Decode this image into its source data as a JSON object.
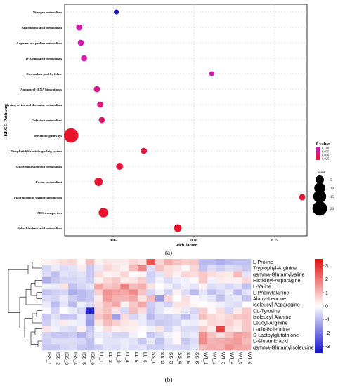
{
  "chart_data": [
    {
      "type": "scatter",
      "panel_label": "(a)",
      "ylabel": "KEGG Pathway",
      "xlabel": "Rich factor",
      "xlim": [
        0.02,
        0.17
      ],
      "xticks": [
        "0.05",
        "0.10",
        "0.15"
      ],
      "xtick_values": [
        0.05,
        0.1,
        0.15
      ],
      "grid": true,
      "legend_placement": "right",
      "color_legend": {
        "title": "P value",
        "ticks": [
          "0.100",
          "0.075",
          "0.050",
          "0.025"
        ],
        "tick_values": [
          0.1,
          0.075,
          0.05,
          0.025
        ],
        "low_color": "#e8142b",
        "high_color": "#c21fc8"
      },
      "size_legend": {
        "title": "Count",
        "ticks": [
          "5",
          "10",
          "15",
          "20"
        ],
        "tick_values": [
          5,
          10,
          15,
          20
        ]
      },
      "points": [
        {
          "pathway": "Nitrogen metabolism",
          "rich_factor": 0.052,
          "count": 1,
          "p_value": 0.12,
          "color": "#1a1aa8"
        },
        {
          "pathway": "Arachidonic acid metabolism",
          "rich_factor": 0.029,
          "count": 2,
          "p_value": 0.09,
          "color": "#d21cb0"
        },
        {
          "pathway": "Arginine and proline metabolism",
          "rich_factor": 0.03,
          "count": 2,
          "p_value": 0.09,
          "color": "#d21cb0"
        },
        {
          "pathway": "D-Amino acid metabolism",
          "rich_factor": 0.032,
          "count": 2,
          "p_value": 0.085,
          "color": "#d41ca4"
        },
        {
          "pathway": "One carbon pool by folate",
          "rich_factor": 0.111,
          "count": 1,
          "p_value": 0.09,
          "color": "#d21cb0"
        },
        {
          "pathway": "Aminoacyl-tRNA biosynthesis",
          "rich_factor": 0.04,
          "count": 2,
          "p_value": 0.07,
          "color": "#d61a8a"
        },
        {
          "pathway": "Glycine, serine and threonine metabolism",
          "rich_factor": 0.042,
          "count": 2,
          "p_value": 0.065,
          "color": "#d81a80"
        },
        {
          "pathway": "Galactose metabolism",
          "rich_factor": 0.043,
          "count": 2,
          "p_value": 0.06,
          "color": "#da1a6c"
        },
        {
          "pathway": "Metabolic pathways",
          "rich_factor": 0.024,
          "count": 20,
          "p_value": 0.02,
          "color": "#e8142b"
        },
        {
          "pathway": "Phosphatidylinositol signaling system",
          "rich_factor": 0.069,
          "count": 2,
          "p_value": 0.035,
          "color": "#e2163e"
        },
        {
          "pathway": "Glycerophospholipid metabolism",
          "rich_factor": 0.054,
          "count": 3,
          "p_value": 0.03,
          "color": "#e31538"
        },
        {
          "pathway": "Purine metabolism",
          "rich_factor": 0.041,
          "count": 5,
          "p_value": 0.025,
          "color": "#e61430"
        },
        {
          "pathway": "Plant hormone signal transduction",
          "rich_factor": 0.167,
          "count": 2,
          "p_value": 0.025,
          "color": "#e61430"
        },
        {
          "pathway": "ABC transporters",
          "rich_factor": 0.044,
          "count": 7,
          "p_value": 0.02,
          "color": "#e8142b"
        },
        {
          "pathway": "alpha-Linolenic acid metabolism",
          "rich_factor": 0.09,
          "count": 4,
          "p_value": 0.02,
          "color": "#e8142b"
        }
      ]
    },
    {
      "type": "heatmap",
      "panel_label": "(b)",
      "rows": [
        "L-Proline",
        "Tryptophyl-Arginine",
        "gamma-Glutamylvaline",
        "Histidinyl-Asparagine",
        "L-Valine",
        "L-Phenylalanine",
        "Alanyl-Leucine",
        "Isoleucyl-Asparagine",
        "DL-Tyrosine",
        "Isoleucyl-Alanine",
        "Leucyl-Arginine",
        "L-allo-isoleucine",
        "S-Lactoylglutathione",
        "L-Glutamic acid",
        "gamma-Glutamylisoleucine"
      ],
      "columns": [
        "ISS_1",
        "ISS_2",
        "ISS_3",
        "ISS_4",
        "ISS_5",
        "ISS_6",
        "LL_1",
        "LL_2",
        "LL_3",
        "LL_4",
        "LL_5",
        "LL_6",
        "SS_1",
        "SS_2",
        "SS_3",
        "SS_4",
        "SS_5",
        "SS_6",
        "WT_1",
        "WT_2",
        "WT_3",
        "WT_4",
        "WT_5",
        "WT_6"
      ],
      "colorbar": {
        "ticks": [
          "3",
          "2",
          "1",
          "0",
          "-1",
          "-2",
          "-3"
        ],
        "tick_values": [
          3,
          2,
          1,
          0,
          -1,
          -2,
          -3
        ],
        "range": [
          -3.5,
          3.5
        ],
        "low_color": "#1010c8",
        "mid_color": "#ffffff",
        "high_color": "#e01010"
      },
      "values": [
        [
          0.2,
          0.3,
          0.5,
          0.6,
          0.1,
          1.0,
          0.2,
          0.4,
          0.3,
          0.3,
          0.6,
          0.4,
          2.5,
          0.6,
          1.2,
          0.9,
          0.7,
          0.8,
          -1.0,
          -1.0,
          -1.2,
          -1.0,
          -0.9,
          -0.9
        ],
        [
          -0.6,
          -0.3,
          -0.5,
          -0.4,
          0.3,
          -0.8,
          -0.3,
          0.6,
          0.4,
          0.2,
          1.0,
          1.8,
          -0.5,
          0.9,
          0.5,
          0.4,
          0.1,
          0.6,
          -0.9,
          -0.5,
          -0.7,
          -0.5,
          -0.6,
          -0.8
        ],
        [
          -0.5,
          -0.9,
          -0.4,
          -0.5,
          -0.4,
          -0.8,
          0.5,
          0.2,
          0.3,
          0.6,
          0.1,
          0.2,
          -0.7,
          -0.4,
          0.5,
          0.2,
          0.6,
          0.5,
          0.8,
          0.5,
          0.4,
          0.3,
          1.0,
          -0.4
        ],
        [
          -1.2,
          -0.8,
          -0.6,
          -0.6,
          -0.5,
          -0.7,
          0.2,
          0.6,
          0.8,
          0.3,
          0.4,
          0.7,
          -0.6,
          -0.2,
          -0.5,
          -0.3,
          -0.2,
          0.1,
          0.8,
          -0.2,
          0.3,
          0.2,
          0.2,
          0.6
        ],
        [
          -0.2,
          -0.3,
          0.4,
          -0.9,
          -0.6,
          -0.4,
          1.3,
          0.8,
          1.0,
          1.8,
          1.0,
          1.2,
          0.4,
          0.0,
          -0.2,
          -0.5,
          -0.2,
          -0.4,
          0.2,
          -0.5,
          -0.4,
          -0.6,
          -0.4,
          -0.9
        ],
        [
          -0.9,
          -0.7,
          -0.6,
          -1.2,
          -1.0,
          -0.8,
          0.7,
          1.6,
          1.4,
          1.3,
          1.7,
          0.9,
          -0.6,
          -0.2,
          -0.7,
          0.2,
          -0.5,
          -1.0,
          -0.4,
          -0.9,
          -0.6,
          -0.3,
          -1.0,
          -0.4
        ],
        [
          -0.5,
          -0.6,
          -0.3,
          -0.7,
          -1.0,
          -0.8,
          0.3,
          1.5,
          1.1,
          1.1,
          1.3,
          0.4,
          1.0,
          -1.5,
          0.6,
          0.0,
          0.5,
          -0.1,
          -0.2,
          -0.4,
          -0.9,
          -0.4,
          -0.3,
          -0.9
        ],
        [
          -0.3,
          -1.0,
          -0.4,
          -1.0,
          -0.2,
          -0.5,
          0.5,
          1.0,
          1.3,
          0.2,
          0.8,
          1.3,
          -0.7,
          -0.4,
          -0.7,
          0.4,
          0.4,
          0.1,
          0.0,
          0.1,
          -0.2,
          -0.4,
          -0.5,
          0.0
        ],
        [
          0.1,
          -0.6,
          0.0,
          -0.3,
          -0.6,
          -3.2,
          0.6,
          0.9,
          0.4,
          -0.6,
          1.0,
          0.5,
          -0.8,
          -0.4,
          0.1,
          0.2,
          -0.3,
          -0.6,
          0.7,
          0.1,
          0.5,
          -0.6,
          0.3,
          0.8
        ],
        [
          -0.8,
          -0.4,
          -0.9,
          -0.8,
          -0.3,
          -1.3,
          0.8,
          1.2,
          -1.4,
          0.5,
          -0.6,
          -0.3,
          -1.0,
          -0.6,
          -0.7,
          -0.5,
          -1.0,
          -0.4,
          0.9,
          0.6,
          0.4,
          0.6,
          0.8,
          0.9
        ],
        [
          -0.7,
          -0.3,
          0.3,
          -0.2,
          -0.3,
          -1.4,
          0.4,
          1.0,
          0.7,
          0.4,
          0.3,
          -0.3,
          -0.6,
          -0.8,
          -0.7,
          -0.6,
          -0.2,
          -0.3,
          0.2,
          0.6,
          0.5,
          0.7,
          0.4,
          0.8
        ],
        [
          0.4,
          -0.2,
          -0.4,
          -0.5,
          0.2,
          -0.8,
          -0.1,
          0.5,
          0.2,
          0.3,
          0.2,
          0.1,
          -0.2,
          0.4,
          -0.6,
          -0.2,
          -0.5,
          -0.5,
          0.7,
          0.3,
          2.8,
          0.5,
          0.3,
          0.8
        ],
        [
          -0.6,
          -0.8,
          -0.8,
          -0.7,
          -1.1,
          -0.7,
          -0.3,
          -0.4,
          -0.6,
          -0.6,
          -0.2,
          0.0,
          -0.8,
          -0.5,
          -0.2,
          0.1,
          -0.4,
          -0.3,
          1.6,
          0.9,
          0.5,
          0.9,
          1.4,
          1.2
        ],
        [
          -0.7,
          -0.5,
          -0.5,
          -0.5,
          -0.6,
          -0.9,
          -0.1,
          -0.4,
          -0.4,
          -0.3,
          -0.4,
          -0.8,
          -0.3,
          -0.9,
          -0.4,
          0.1,
          -0.8,
          -0.5,
          1.7,
          1.1,
          1.2,
          1.3,
          1.5,
          1.0
        ],
        [
          -0.8,
          -0.8,
          -0.6,
          -0.5,
          -0.8,
          -0.9,
          -0.7,
          -0.4,
          -0.5,
          -0.3,
          -0.5,
          -0.4,
          -0.7,
          -0.7,
          -0.5,
          -0.5,
          -0.6,
          -0.4,
          1.0,
          1.2,
          1.1,
          1.6,
          1.3,
          1.2
        ]
      ]
    }
  ]
}
